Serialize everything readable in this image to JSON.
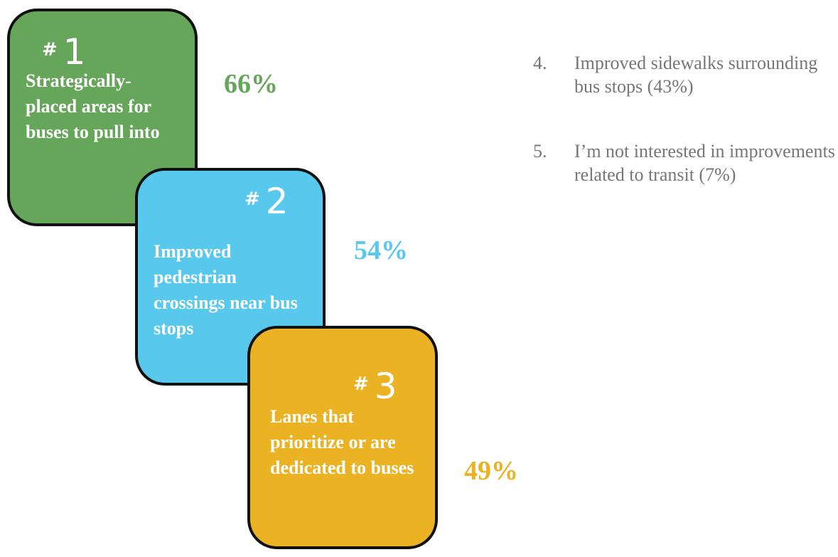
{
  "rank_symbol": "#",
  "cards": [
    {
      "rank": "1",
      "label": "Strategically-placed areas for buses to pull into",
      "percent": "66%"
    },
    {
      "rank": "2",
      "label": "Improved pedestrian crossings near bus stops",
      "percent": "54%"
    },
    {
      "rank": "3",
      "label": "Lanes that prioritize or are dedicated to buses",
      "percent": "49%"
    }
  ],
  "list": [
    {
      "number": "4.",
      "text": "Improved sidewalks surrounding bus stops (43%)"
    },
    {
      "number": "5.",
      "text": "I’m not interested in improvements related to transit (7%)"
    }
  ]
}
